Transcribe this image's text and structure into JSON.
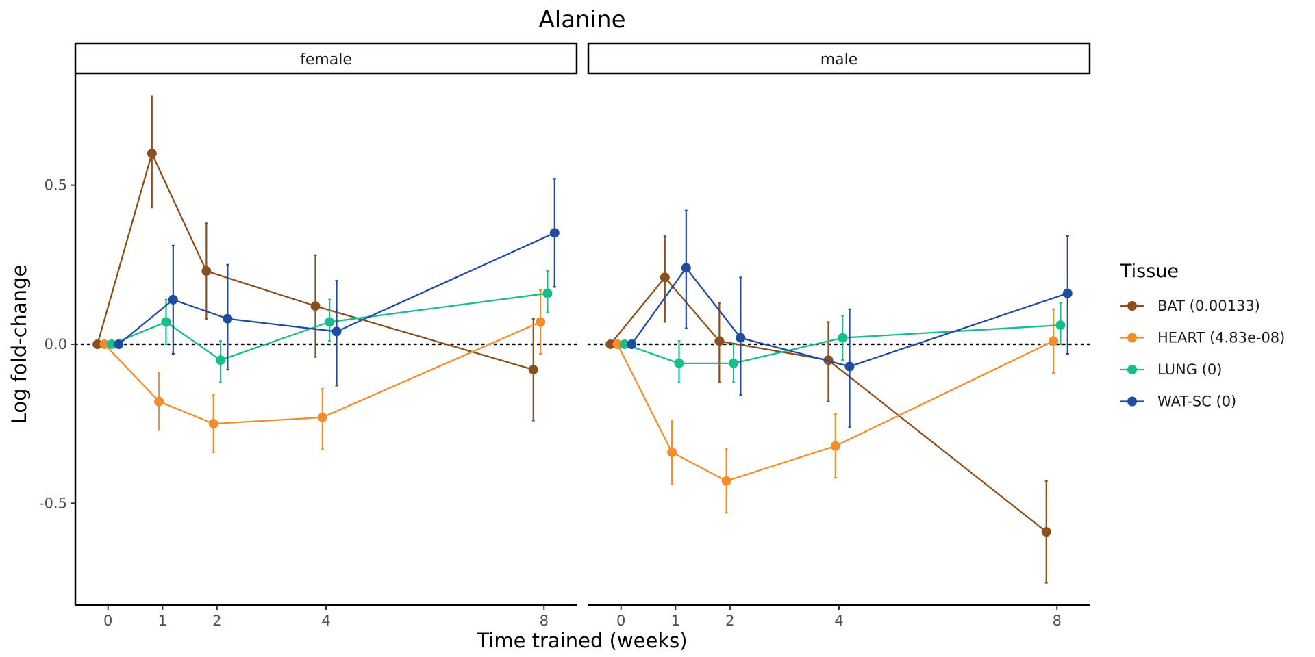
{
  "chart_data": {
    "type": "line",
    "title": "Alanine",
    "xlabel": "Time trained (weeks)",
    "ylabel": "Log fold-change",
    "x_ticks": [
      0,
      1,
      2,
      4,
      8
    ],
    "y_ticks": [
      -0.5,
      0.0,
      0.5
    ],
    "y_tick_labels": [
      "-0.5",
      "0.0",
      "0.5"
    ],
    "ylim": [
      -0.82,
      0.85
    ],
    "xlim": [
      -0.6,
      8.6
    ],
    "reference_line": 0,
    "grid": false,
    "legend": {
      "title": "Tissue",
      "position": "right"
    },
    "series_meta": [
      {
        "name": "BAT (0.00133)",
        "color": "#8B4F1D"
      },
      {
        "name": "HEART (4.83e-08)",
        "color": "#F28E2C"
      },
      {
        "name": "LUNG (0)",
        "color": "#16BE8B"
      },
      {
        "name": "WAT-SC (0)",
        "color": "#1F4BA3"
      }
    ],
    "panels": [
      {
        "label": "female",
        "series": [
          {
            "x": [
              0,
              1,
              2,
              4,
              8
            ],
            "y": [
              0,
              0.6,
              0.23,
              0.12,
              -0.08
            ],
            "err_low": [
              0,
              0.43,
              0.08,
              -0.04,
              -0.24
            ],
            "err_high": [
              0,
              0.78,
              0.38,
              0.28,
              0.08
            ]
          },
          {
            "x": [
              0,
              1,
              2,
              4,
              8
            ],
            "y": [
              0,
              -0.18,
              -0.25,
              -0.23,
              0.07
            ],
            "err_low": [
              0,
              -0.27,
              -0.34,
              -0.33,
              -0.03
            ],
            "err_high": [
              0,
              -0.09,
              -0.16,
              -0.14,
              0.17
            ]
          },
          {
            "x": [
              0,
              1,
              2,
              4,
              8
            ],
            "y": [
              0,
              0.07,
              -0.05,
              0.07,
              0.16
            ],
            "err_low": [
              0,
              0.0,
              -0.12,
              0.01,
              0.1
            ],
            "err_high": [
              0,
              0.14,
              0.01,
              0.14,
              0.23
            ]
          },
          {
            "x": [
              0,
              1,
              2,
              4,
              8
            ],
            "y": [
              0,
              0.14,
              0.08,
              0.04,
              0.35
            ],
            "err_low": [
              0,
              -0.03,
              -0.08,
              -0.13,
              0.18
            ],
            "err_high": [
              0,
              0.31,
              0.25,
              0.2,
              0.52
            ]
          }
        ]
      },
      {
        "label": "male",
        "series": [
          {
            "x": [
              0,
              1,
              2,
              4,
              8
            ],
            "y": [
              0,
              0.21,
              0.01,
              -0.05,
              -0.59
            ],
            "err_low": [
              0,
              0.07,
              -0.12,
              -0.18,
              -0.75
            ],
            "err_high": [
              0,
              0.34,
              0.13,
              0.07,
              -0.43
            ]
          },
          {
            "x": [
              0,
              1,
              2,
              4,
              8
            ],
            "y": [
              0,
              -0.34,
              -0.43,
              -0.32,
              0.01
            ],
            "err_low": [
              0,
              -0.44,
              -0.53,
              -0.42,
              -0.09
            ],
            "err_high": [
              0,
              -0.24,
              -0.33,
              -0.22,
              0.11
            ]
          },
          {
            "x": [
              0,
              1,
              2,
              4,
              8
            ],
            "y": [
              0,
              -0.06,
              -0.06,
              0.02,
              0.06
            ],
            "err_low": [
              0,
              -0.12,
              -0.12,
              -0.05,
              0.0
            ],
            "err_high": [
              0,
              0.01,
              0.0,
              0.09,
              0.13
            ]
          },
          {
            "x": [
              0,
              1,
              2,
              4,
              8
            ],
            "y": [
              0,
              0.24,
              0.02,
              -0.07,
              0.16
            ],
            "err_low": [
              0,
              0.05,
              -0.16,
              -0.26,
              -0.03
            ],
            "err_high": [
              0,
              0.42,
              0.21,
              0.11,
              0.34
            ]
          }
        ]
      }
    ]
  }
}
